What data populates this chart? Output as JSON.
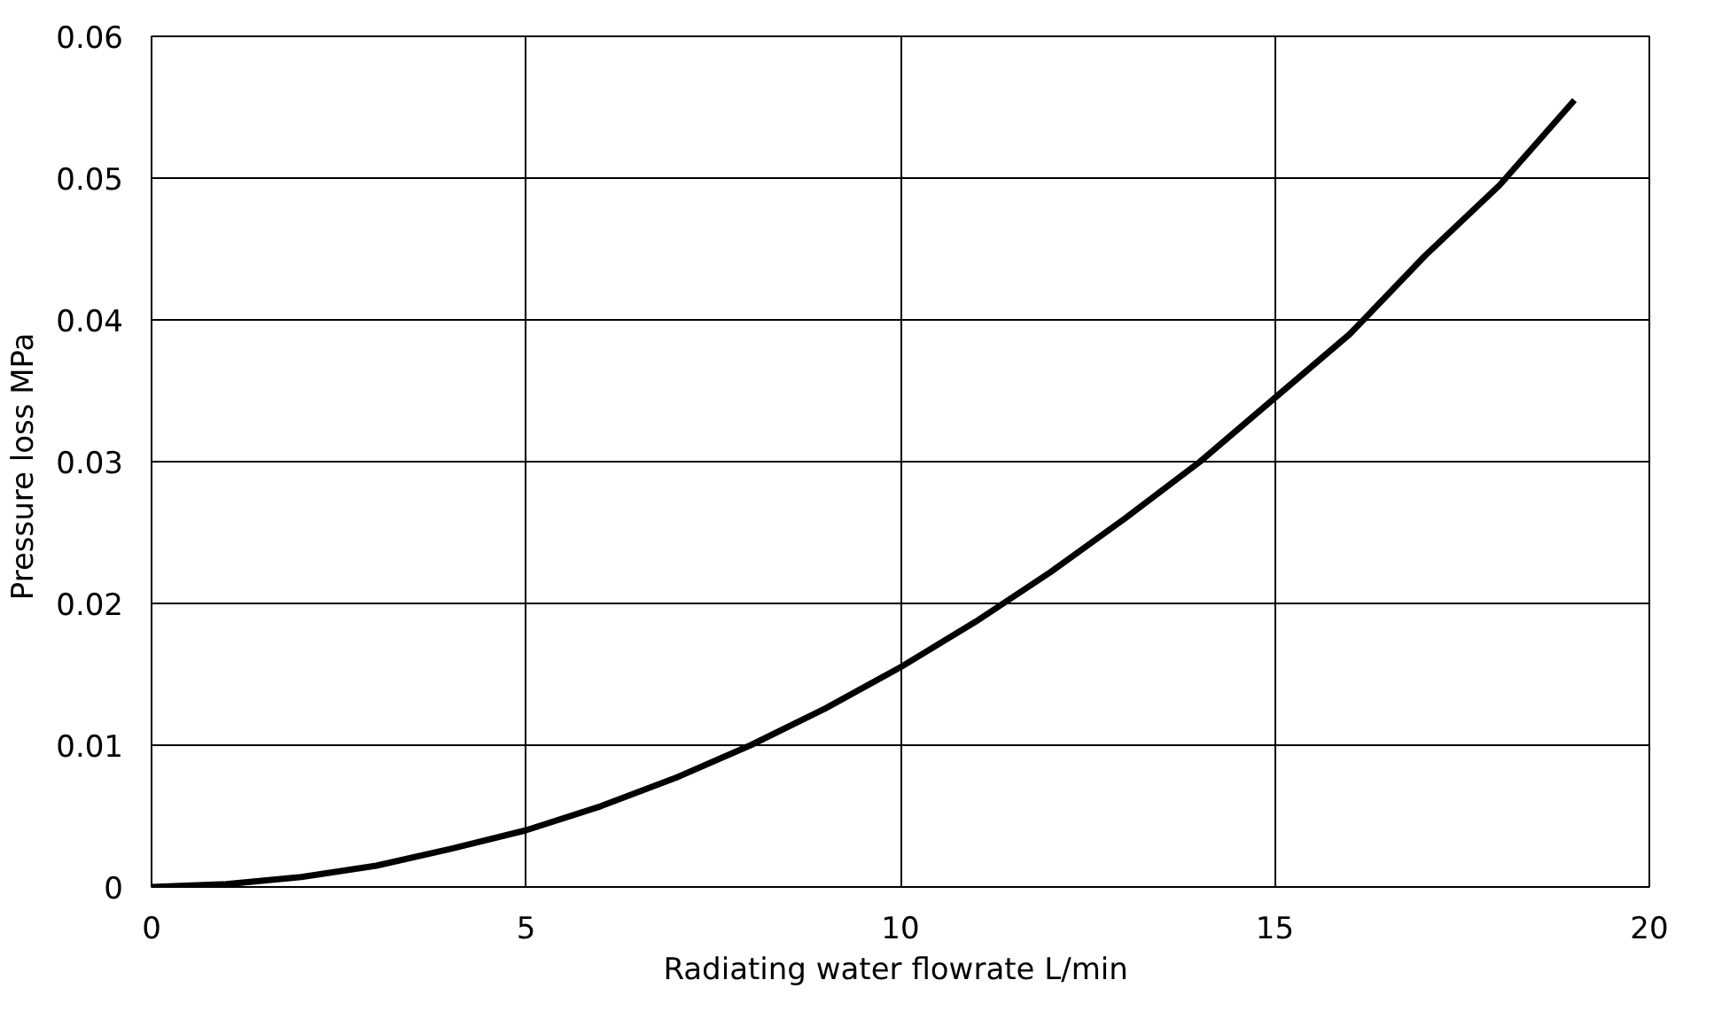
{
  "chart_data": {
    "type": "line",
    "xlabel": "Radiating water flowrate  L/min",
    "ylabel": "Pressure loss  MPa",
    "x": [
      0,
      1,
      2,
      3,
      4,
      5,
      6,
      7,
      8,
      9,
      10,
      11,
      12,
      13,
      14,
      15,
      16,
      17,
      18,
      19
    ],
    "series": [
      {
        "color": "#000000",
        "values": [
          0,
          0.0002,
          0.0007,
          0.0015,
          0.0027,
          0.004,
          0.0057,
          0.0077,
          0.01,
          0.0126,
          0.0155,
          0.0187,
          0.0222,
          0.026,
          0.03,
          0.0345,
          0.039,
          0.0445,
          0.0495,
          0.0555
        ]
      }
    ],
    "xlim": [
      0,
      20
    ],
    "xticks": [
      0,
      5,
      10,
      15,
      20
    ],
    "ylim": [
      0,
      0.06
    ],
    "yticks": [
      0,
      {
        "value": 0.01,
        "label": "0.01"
      },
      {
        "value": 0.02,
        "label": "0.02"
      },
      {
        "value": 0.03,
        "label": "0.03"
      },
      {
        "value": 0.04,
        "label": "0.04"
      },
      {
        "value": 0.05,
        "label": "0.05"
      },
      {
        "value": 0.06,
        "label": "0.06"
      }
    ],
    "grid": true,
    "marker": "none",
    "line_style": "solid"
  }
}
